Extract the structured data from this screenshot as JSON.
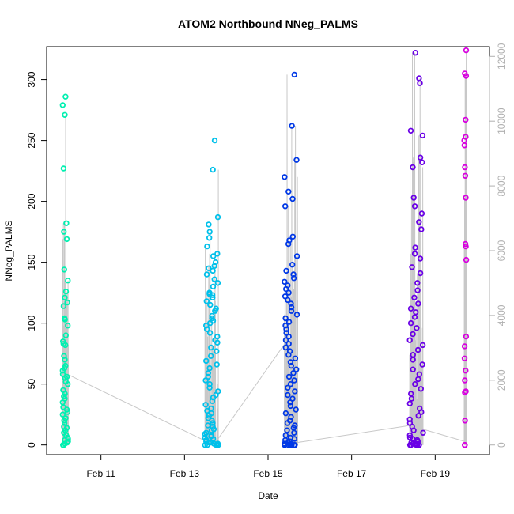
{
  "chart_data": {
    "type": "scatter",
    "title": "ATOM2 Northbound NNeg_PALMS",
    "xlabel": "Date",
    "ylabel": "NNeg_PALMS",
    "x_tick_labels": [
      "Feb 11",
      "Feb 13",
      "Feb 15",
      "Feb 17",
      "Feb 19"
    ],
    "x_tick_values": [
      11,
      13,
      15,
      17,
      19
    ],
    "xlim": [
      9.7,
      20.3
    ],
    "ylim": [
      -8,
      327
    ],
    "y_ticks": [
      0,
      50,
      100,
      150,
      200,
      250,
      300
    ],
    "y2_ticks": [
      0,
      2000,
      4000,
      6000,
      8000,
      10000,
      12000
    ],
    "y2lim": [
      -300,
      12300
    ],
    "grid": false,
    "legend": "none",
    "overlay_line_color": "#c8c8c8",
    "series": [
      {
        "color": "#00f0b0",
        "x_center": 10.15,
        "x_width": 0.14,
        "points": [
          286,
          279,
          271,
          227,
          182,
          175,
          169,
          144,
          135,
          126,
          121,
          117,
          114,
          104,
          103,
          98,
          90,
          85,
          83,
          82,
          73,
          70,
          65,
          63,
          61,
          58,
          56,
          55,
          52,
          50,
          45,
          42,
          40,
          38,
          35,
          31,
          29,
          27,
          25,
          22,
          20,
          18,
          15,
          14,
          12,
          10,
          8,
          6,
          5,
          4,
          3,
          2,
          1,
          0,
          0,
          0
        ]
      },
      {
        "color": "#00c0ea",
        "x_center": 13.65,
        "x_width": 0.32,
        "points": [
          250,
          226,
          187,
          181,
          175,
          170,
          163,
          157,
          155,
          150,
          147,
          145,
          143,
          140,
          136,
          133,
          130,
          125,
          124,
          123,
          121,
          118,
          115,
          112,
          110,
          106,
          104,
          102,
          100,
          98,
          95,
          92,
          89,
          86,
          84,
          80,
          77,
          73,
          69,
          66,
          63,
          59,
          56,
          53,
          50,
          47,
          44,
          41,
          39,
          36,
          33,
          30,
          28,
          26,
          24,
          22,
          20,
          18,
          16,
          15,
          13,
          12,
          10,
          9,
          8,
          7,
          6,
          5,
          4,
          3,
          2,
          2,
          1,
          1,
          0,
          0,
          0,
          0,
          0,
          0
        ]
      },
      {
        "color": "#0038e6",
        "x_center": 15.55,
        "x_width": 0.32,
        "points": [
          304,
          262,
          234,
          220,
          208,
          202,
          196,
          171,
          168,
          165,
          155,
          148,
          143,
          140,
          137,
          134,
          131,
          128,
          125,
          122,
          119,
          116,
          113,
          110,
          107,
          104,
          101,
          98,
          95,
          92,
          89,
          86,
          83,
          80,
          77,
          74,
          71,
          68,
          65,
          62,
          59,
          56,
          53,
          50,
          47,
          44,
          41,
          38,
          35,
          32,
          29,
          26,
          23,
          20,
          18,
          16,
          14,
          12,
          10,
          8,
          6,
          5,
          4,
          3,
          2,
          1,
          1,
          0,
          0,
          0,
          0,
          0,
          0,
          0,
          0
        ]
      },
      {
        "color": "#6a00e6",
        "x_center": 18.55,
        "x_width": 0.32,
        "points": [
          322,
          301,
          297,
          258,
          254,
          236,
          232,
          228,
          203,
          196,
          190,
          183,
          177,
          162,
          157,
          153,
          146,
          141,
          133,
          127,
          121,
          116,
          112,
          109,
          105,
          100,
          96,
          91,
          86,
          82,
          78,
          74,
          70,
          66,
          62,
          58,
          54,
          50,
          46,
          42,
          38,
          34,
          30,
          27,
          24,
          21,
          18,
          15,
          12,
          10,
          8,
          6,
          5,
          4,
          3,
          2,
          1,
          1,
          0,
          0,
          0,
          0,
          0,
          0
        ]
      },
      {
        "color": "#d800e0",
        "x_center": 19.72,
        "x_width": 0.05,
        "points": [
          324,
          305,
          303,
          267,
          253,
          250,
          246,
          228,
          221,
          203,
          165,
          163,
          152,
          89,
          81,
          71,
          61,
          53,
          44,
          43,
          20,
          0,
          0
        ]
      }
    ]
  }
}
